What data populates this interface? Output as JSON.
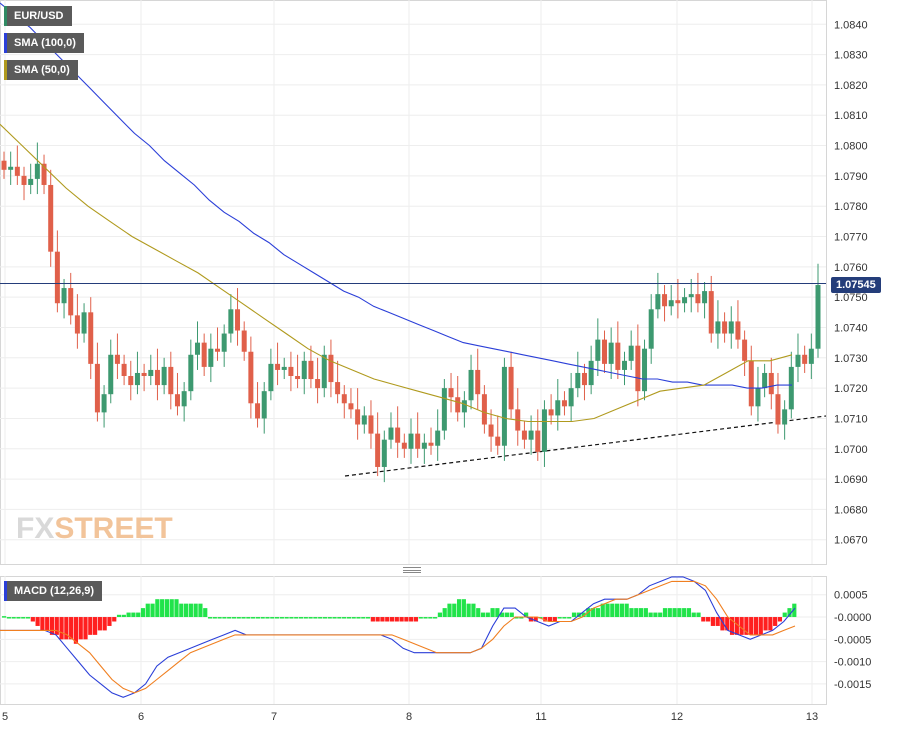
{
  "legend": {
    "symbol": "EUR/USD",
    "sma100": "SMA (100,0)",
    "sma50": "SMA (50,0)",
    "macd": "MACD (12,26,9)"
  },
  "colors": {
    "up": "#3d9970",
    "down": "#e0604a",
    "sma100": "#2b3fd8",
    "sma50": "#b09a1e",
    "macd_line": "#2b3fd8",
    "signal_line": "#f07f20",
    "hist_pos": "#21e34a",
    "hist_neg": "#ff1f1f",
    "price_line": "#243d7a",
    "legend_price_swatch": "#2f8a63"
  },
  "logo": {
    "fx": "FX",
    "street": "STREET"
  },
  "price_tag": "1.07545",
  "chart_data": [
    {
      "type": "candlestick",
      "title": "EUR/USD",
      "x_tick_labels": [
        "5",
        "6",
        "7",
        "8",
        "11",
        "12",
        "13"
      ],
      "y_ticks": [
        1.067,
        1.068,
        1.069,
        1.07,
        1.071,
        1.072,
        1.073,
        1.074,
        1.075,
        1.076,
        1.077,
        1.078,
        1.079,
        1.08,
        1.081,
        1.082,
        1.083,
        1.084
      ],
      "y_tick_labels": [
        "1.0670",
        "1.0680",
        "1.0690",
        "1.0700",
        "1.0710",
        "1.0720",
        "1.0730",
        "1.0740",
        "1.0750",
        "1.0760",
        "1.0770",
        "1.0780",
        "1.0790",
        "1.0800",
        "1.0810",
        "1.0820",
        "1.0830",
        "1.0840"
      ],
      "ylim": [
        1.0662,
        1.0848
      ],
      "current_price": 1.07545,
      "grid": true,
      "closes": [
        1.0792,
        1.0793,
        1.079,
        1.0787,
        1.0789,
        1.0794,
        1.0787,
        1.0765,
        1.0748,
        1.0753,
        1.0744,
        1.0738,
        1.0745,
        1.0728,
        1.0712,
        1.0718,
        1.0731,
        1.0728,
        1.0724,
        1.0721,
        1.0725,
        1.0724,
        1.0726,
        1.0721,
        1.0727,
        1.0718,
        1.0714,
        1.0719,
        1.0731,
        1.0735,
        1.0727,
        1.0733,
        1.0732,
        1.0738,
        1.0746,
        1.0739,
        1.0732,
        1.0715,
        1.071,
        1.0719,
        1.0728,
        1.0726,
        1.0727,
        1.0724,
        1.0723,
        1.0729,
        1.0723,
        1.072,
        1.0731,
        1.0722,
        1.0718,
        1.0715,
        1.0713,
        1.0708,
        1.0711,
        1.0705,
        1.0694,
        1.0703,
        1.0707,
        1.0702,
        1.07,
        1.0705,
        1.07,
        1.0702,
        1.0701,
        1.0706,
        1.072,
        1.0717,
        1.0712,
        1.0716,
        1.0726,
        1.0718,
        1.0708,
        1.0704,
        1.0701,
        1.0727,
        1.0713,
        1.0706,
        1.0703,
        1.0706,
        1.0699,
        1.0713,
        1.0711,
        1.0716,
        1.0714,
        1.072,
        1.0725,
        1.0721,
        1.0729,
        1.0736,
        1.0728,
        1.0735,
        1.0726,
        1.0729,
        1.0734,
        1.0719,
        1.0733,
        1.0746,
        1.0751,
        1.0747,
        1.0749,
        1.0748,
        1.075,
        1.0751,
        1.0748,
        1.0752,
        1.0738,
        1.0742,
        1.0738,
        1.0742,
        1.0736,
        1.0729,
        1.0714,
        1.072,
        1.0725,
        1.0718,
        1.0708,
        1.0713,
        1.0727,
        1.0731,
        1.0728,
        1.0733,
        1.0754
      ],
      "series": [
        {
          "name": "SMA (100,0)",
          "values": [
            1.0847,
            1.0843,
            1.0839,
            1.0834,
            1.0829,
            1.0824,
            1.0819,
            1.0814,
            1.0809,
            1.0804,
            1.08,
            1.0795,
            1.0791,
            1.0787,
            1.0782,
            1.0778,
            1.0775,
            1.0771,
            1.0768,
            1.0764,
            1.0761,
            1.0758,
            1.0755,
            1.0752,
            1.075,
            1.0747,
            1.0745,
            1.0743,
            1.0741,
            1.0739,
            1.0737,
            1.0735,
            1.0734,
            1.0733,
            1.0732,
            1.0731,
            1.073,
            1.0729,
            1.0728,
            1.0727,
            1.0726,
            1.0725,
            1.0724,
            1.0723,
            1.0723,
            1.0722,
            1.0722,
            1.0721,
            1.0721,
            1.0721,
            1.072,
            1.072,
            1.0721,
            1.0721
          ]
        },
        {
          "name": "SMA (50,0)",
          "values": [
            1.0807,
            1.08,
            1.0793,
            1.0786,
            1.078,
            1.0775,
            1.077,
            1.0766,
            1.0762,
            1.0758,
            1.0753,
            1.0748,
            1.0743,
            1.0738,
            1.0733,
            1.0729,
            1.0726,
            1.0723,
            1.0721,
            1.0719,
            1.0717,
            1.0715,
            1.0712,
            1.071,
            1.0709,
            1.0709,
            1.0709,
            1.071,
            1.0713,
            1.0716,
            1.0719,
            1.072,
            1.0721,
            1.0725,
            1.0729,
            1.0729,
            1.0731
          ]
        }
      ]
    },
    {
      "type": "bar",
      "title": "MACD (12,26,9)",
      "y_ticks": [
        0.0005,
        0,
        -0.0005,
        -0.001,
        -0.0015
      ],
      "y_tick_labels": [
        "0.0005",
        "-0.0000",
        "-0.0005",
        "-0.0010",
        "-0.0015"
      ],
      "ylim": [
        -0.00195,
        0.00092
      ],
      "histogram": [
        2e-05,
        0,
        0,
        0,
        0,
        0,
        -0.0001,
        -0.0002,
        -0.0003,
        -0.0003,
        -0.0004,
        -0.0004,
        -0.0005,
        -0.0005,
        -0.0005,
        -0.0006,
        -0.0005,
        -0.0005,
        -0.0004,
        -0.0004,
        -0.0003,
        -0.0003,
        -0.0002,
        -0.0001,
        5e-05,
        5e-05,
        0.0001,
        0.0001,
        0.0001,
        0.0002,
        0.0003,
        0.0003,
        0.0004,
        0.0004,
        0.0004,
        0.0004,
        0.0004,
        0.0003,
        0.0003,
        0.0003,
        0.0003,
        0.0003,
        0.0002,
        0,
        0,
        0,
        0,
        0,
        0,
        0,
        0,
        0,
        0,
        0,
        0,
        0,
        0,
        0,
        0,
        0,
        0,
        0,
        0,
        0,
        0,
        0,
        0,
        0,
        0,
        0,
        0,
        0,
        0,
        0,
        0,
        0,
        0,
        -0.0001,
        -0.0001,
        -0.0001,
        -0.0001,
        -0.0001,
        -0.0001,
        -0.0001,
        -0.0001,
        -0.0001,
        -0.0001,
        0,
        0,
        0,
        0,
        0.0001,
        0.0002,
        0.0003,
        0.0003,
        0.0004,
        0.0004,
        0.0003,
        0.0003,
        0.0002,
        0.0001,
        0.0001,
        0.0002,
        0.0002,
        0.0001,
        0.0001,
        0.0001,
        0,
        0,
        0.0001,
        -0.0001,
        -0.0001,
        0,
        -0.0001,
        -0.0001,
        -0.0001,
        0,
        0,
        0,
        0.0001,
        0.0001,
        0.0001,
        0.0002,
        0.0002,
        0.0002,
        0.0003,
        0.0003,
        0.0003,
        0.0003,
        0.0003,
        0.0003,
        0.0002,
        0.0002,
        0.0002,
        0.0002,
        0.0001,
        0.0001,
        0.0001,
        0.0002,
        0.0002,
        0.0002,
        0.0002,
        0.0002,
        0.0002,
        0.0001,
        0.0001,
        -0.0001,
        -0.0001,
        -0.0002,
        -0.0002,
        -0.0003,
        -0.0003,
        -0.0004,
        -0.0004,
        -0.0004,
        -0.0004,
        -0.0004,
        -0.0004,
        -0.0004,
        -0.0003,
        -0.0003,
        -0.0002,
        -0.0001,
        0.0001,
        0.0002,
        0.0003
      ],
      "series": [
        {
          "name": "MACD",
          "values": [
            -0.0003,
            -0.0003,
            -0.0003,
            -0.0003,
            -0.0003,
            -0.0004,
            -0.0007,
            -0.001,
            -0.0013,
            -0.0015,
            -0.0017,
            -0.0018,
            -0.0017,
            -0.0015,
            -0.0011,
            -0.0009,
            -0.0008,
            -0.0007,
            -0.0006,
            -0.0005,
            -0.0004,
            -0.0003,
            -0.0004,
            -0.0004,
            -0.0004,
            -0.0004,
            -0.0004,
            -0.0004,
            -0.0004,
            -0.0004,
            -0.0004,
            -0.0004,
            -0.0004,
            -0.0004,
            -0.0004,
            -0.0005,
            -0.0007,
            -0.0008,
            -0.0008,
            -0.0008,
            -0.0008,
            -0.0008,
            -0.0008,
            -0.0007,
            -0.0002,
            0.0002,
            0.0002,
            0,
            -0.0001,
            -0.0002,
            -0.0001,
            -0.0001,
            0.0001,
            0.0003,
            0.0004,
            0.0004,
            0.0004,
            0.0005,
            0.0007,
            0.0008,
            0.0009,
            0.0009,
            0.0008,
            0.0006,
            0.0001,
            -0.0003,
            -0.0004,
            -0.0005,
            -0.0004,
            -0.0003,
            -0.0001,
            0.0002
          ]
        },
        {
          "name": "Signal",
          "values": [
            -0.0003,
            -0.0003,
            -0.0003,
            -0.0003,
            -0.0003,
            -0.0003,
            -0.0004,
            -0.0006,
            -0.0008,
            -0.0011,
            -0.0014,
            -0.0016,
            -0.0017,
            -0.0016,
            -0.0014,
            -0.0012,
            -0.001,
            -0.0008,
            -0.0007,
            -0.0006,
            -0.0005,
            -0.0004,
            -0.0004,
            -0.0004,
            -0.0004,
            -0.0004,
            -0.0004,
            -0.0004,
            -0.0004,
            -0.0004,
            -0.0004,
            -0.0004,
            -0.0004,
            -0.0004,
            -0.0004,
            -0.0004,
            -0.0005,
            -0.0006,
            -0.0007,
            -0.0008,
            -0.0008,
            -0.0008,
            -0.0008,
            -0.0007,
            -0.0005,
            -0.0002,
            0,
            0,
            0,
            -0.0001,
            -0.0001,
            -0.0001,
            0,
            0.0002,
            0.0003,
            0.0004,
            0.0004,
            0.0005,
            0.0006,
            0.0007,
            0.0008,
            0.0008,
            0.0008,
            0.0007,
            0.0004,
            0,
            -0.0002,
            -0.0004,
            -0.0004,
            -0.0004,
            -0.0003,
            -0.0002
          ]
        }
      ]
    }
  ]
}
